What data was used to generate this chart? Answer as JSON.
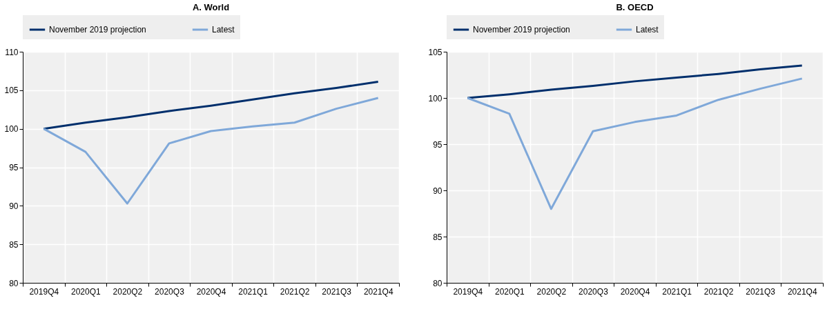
{
  "chart_data": [
    {
      "type": "line",
      "title": "A. World",
      "categories": [
        "2019Q4",
        "2020Q1",
        "2020Q2",
        "2020Q3",
        "2020Q4",
        "2021Q1",
        "2021Q2",
        "2021Q3",
        "2021Q4"
      ],
      "ylim": [
        80,
        110
      ],
      "yticks": [
        80,
        85,
        90,
        95,
        100,
        105,
        110
      ],
      "grid": true,
      "legend": "top",
      "line_style": "solid",
      "series": [
        {
          "name": "November 2019 projection",
          "color": "#002f6c",
          "values": [
            100,
            100.8,
            101.5,
            102.3,
            103.0,
            103.8,
            104.6,
            105.3,
            106.1
          ]
        },
        {
          "name": "Latest",
          "color": "#7fa8d9",
          "values": [
            100,
            97.0,
            90.3,
            98.1,
            99.7,
            100.3,
            100.8,
            102.6,
            104.0
          ]
        }
      ]
    },
    {
      "type": "line",
      "title": "B. OECD",
      "categories": [
        "2019Q4",
        "2020Q1",
        "2020Q2",
        "2020Q3",
        "2020Q4",
        "2021Q1",
        "2021Q2",
        "2021Q3",
        "2021Q4"
      ],
      "ylim": [
        80,
        105
      ],
      "yticks": [
        80,
        85,
        90,
        95,
        100,
        105
      ],
      "grid": true,
      "legend": "top",
      "line_style": "solid",
      "series": [
        {
          "name": "November 2019 projection",
          "color": "#002f6c",
          "values": [
            100,
            100.4,
            100.9,
            101.3,
            101.8,
            102.2,
            102.6,
            103.1,
            103.5
          ]
        },
        {
          "name": "Latest",
          "color": "#7fa8d9",
          "values": [
            100,
            98.3,
            88.0,
            96.4,
            97.4,
            98.1,
            99.8,
            101.0,
            102.1
          ]
        }
      ]
    }
  ]
}
